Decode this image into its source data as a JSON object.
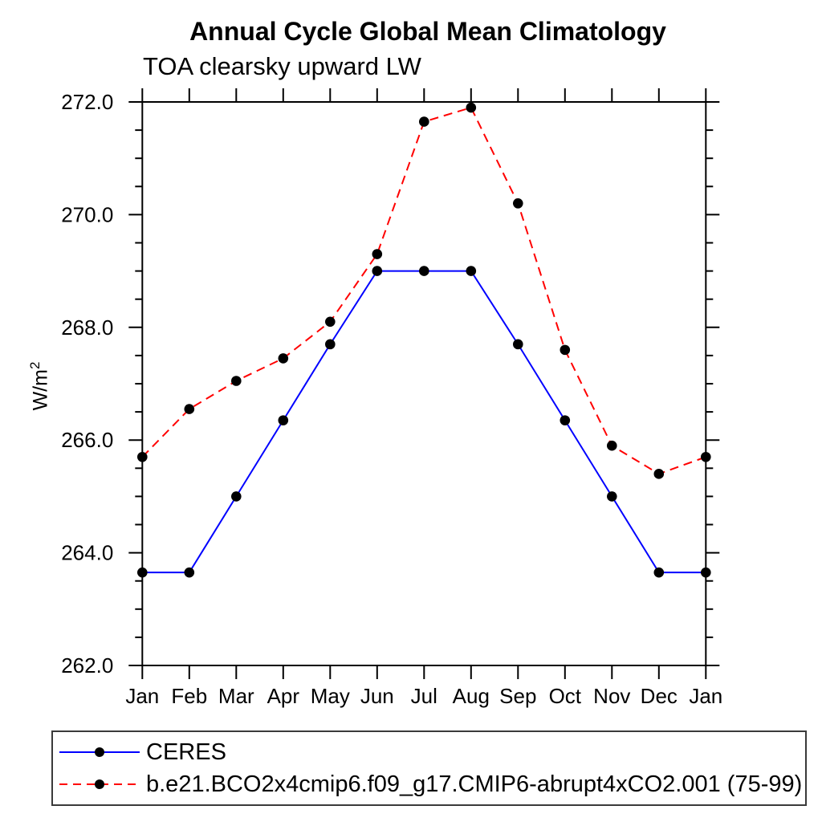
{
  "chart_data": {
    "type": "line",
    "title": "Annual Cycle Global Mean Climatology",
    "subtitle": "TOA clearsky upward LW",
    "ylabel": "W/m²",
    "ylabel_base": "W/m",
    "ylabel_sup": "2",
    "categories": [
      "Jan",
      "Feb",
      "Mar",
      "Apr",
      "May",
      "Jun",
      "Jul",
      "Aug",
      "Sep",
      "Oct",
      "Nov",
      "Dec",
      "Jan"
    ],
    "ylim": [
      262.0,
      272.0
    ],
    "ytick_major_step": 2.0,
    "ytick_minor_step": 0.5,
    "ytick_label_decimals": 1,
    "grid": false,
    "legend_position": "bottom-left boxed",
    "axis_color": "#000000",
    "marker_shape": "filled-circle",
    "series": [
      {
        "name": "CERES",
        "color": "#0000ff",
        "line_style": "solid",
        "marker_color": "#000000",
        "values": [
          263.65,
          263.65,
          265.0,
          266.35,
          267.7,
          269.0,
          269.0,
          269.0,
          267.7,
          266.35,
          265.0,
          263.65,
          263.65
        ]
      },
      {
        "name": "b.e21.BCO2x4cmip6.f09_g17.CMIP6-abrupt4xCO2.001 (75-99)",
        "color": "#ff0000",
        "line_style": "dashed",
        "marker_color": "#000000",
        "values": [
          265.7,
          266.55,
          267.05,
          267.45,
          268.1,
          269.3,
          271.65,
          271.9,
          270.2,
          267.6,
          265.9,
          265.4,
          265.7
        ]
      }
    ]
  }
}
